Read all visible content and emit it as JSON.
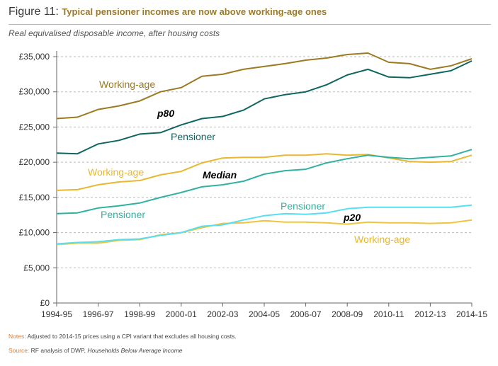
{
  "figure": {
    "number": "Figure 11:",
    "title": "Typical pensioner incomes are now above working-age ones",
    "subtitle": "Real equivalised disposable income, after housing costs"
  },
  "notes": {
    "label": "Notes:",
    "text": " Adjusted to 2014-15 prices using a CPI variant that excludes all housing costs."
  },
  "source": {
    "label": "Source:",
    "text": " RF analysis of DWP, ",
    "italic": "Households Below Average Income"
  },
  "colors": {
    "working_age_p80": "#9b7a20",
    "pensioner_p80": "#0f6660",
    "working_age_median": "#e8b830",
    "pensioner_median": "#2fb2a2",
    "working_age_p20": "#f0c43c",
    "pensioner_p20": "#55e0f0",
    "grid": "#bbbbbb",
    "axis": "#666666"
  },
  "chart_data": {
    "type": "line",
    "x": [
      "1994-95",
      "1995-96",
      "1996-97",
      "1997-98",
      "1998-99",
      "1999-00",
      "2000-01",
      "2001-02",
      "2002-03",
      "2003-04",
      "2004-05",
      "2005-06",
      "2006-07",
      "2007-08",
      "2008-09",
      "2009-10",
      "2010-11",
      "2011-12",
      "2012-13",
      "2013-14",
      "2014-15"
    ],
    "x_tick_labels": [
      "1994-95",
      "1996-97",
      "1998-99",
      "2000-01",
      "2002-03",
      "2004-05",
      "2006-07",
      "2008-09",
      "2010-11",
      "2012-13",
      "2014-15"
    ],
    "y_tick_labels": [
      "£0",
      "£5,000",
      "£10,000",
      "£15,000",
      "£20,000",
      "£25,000",
      "£30,000",
      "£35,000"
    ],
    "y_ticks": [
      0,
      5000,
      10000,
      15000,
      20000,
      25000,
      30000,
      35000
    ],
    "ylim": [
      0,
      36000
    ],
    "grid": "horizontal dashed",
    "series": [
      {
        "key": "working_age_p80",
        "values": [
          26200,
          26400,
          27500,
          28000,
          28700,
          30000,
          30600,
          32200,
          32500,
          33200,
          33600,
          34000,
          34500,
          34800,
          35300,
          35500,
          34200,
          34000,
          33200,
          33700,
          34700
        ]
      },
      {
        "key": "pensioner_p80",
        "values": [
          21300,
          21200,
          22600,
          23100,
          24000,
          24200,
          25300,
          26200,
          26500,
          27400,
          29000,
          29600,
          30000,
          31000,
          32400,
          33200,
          32100,
          32000,
          32500,
          33000,
          34400
        ]
      },
      {
        "key": "working_age_median",
        "values": [
          16000,
          16100,
          16800,
          17200,
          17400,
          18200,
          18700,
          19900,
          20600,
          20700,
          20700,
          21000,
          21000,
          21200,
          21000,
          21100,
          20600,
          20100,
          20000,
          20100,
          21000
        ]
      },
      {
        "key": "pensioner_median",
        "values": [
          12700,
          12800,
          13500,
          13800,
          14200,
          15000,
          15700,
          16500,
          16800,
          17300,
          18300,
          18800,
          19000,
          19900,
          20500,
          21000,
          20700,
          20500,
          20700,
          20900,
          21800
        ]
      },
      {
        "key": "working_age_p20",
        "values": [
          8300,
          8500,
          8500,
          8900,
          9000,
          9700,
          10000,
          10700,
          11300,
          11400,
          11700,
          11500,
          11500,
          11400,
          11200,
          11500,
          11400,
          11400,
          11300,
          11400,
          11800
        ]
      },
      {
        "key": "pensioner_p20",
        "values": [
          8400,
          8600,
          8700,
          9000,
          9100,
          9600,
          10000,
          10900,
          11100,
          11800,
          12400,
          12700,
          12600,
          12800,
          13400,
          13600,
          13600,
          13600,
          13600,
          13600,
          13900
        ]
      }
    ],
    "annotations": [
      {
        "key": "wa_p80_label",
        "text": "Working-age",
        "series": "working_age_p80"
      },
      {
        "key": "p80_label",
        "text": "p80",
        "style": "bold-italic"
      },
      {
        "key": "pen_p80_label",
        "text": "Pensioner",
        "series": "pensioner_p80"
      },
      {
        "key": "wa_median_label",
        "text": "Working-age",
        "series": "working_age_median"
      },
      {
        "key": "median_label",
        "text": "Median",
        "style": "bold-italic"
      },
      {
        "key": "pen_median_label",
        "text": "Pensioner",
        "series": "pensioner_median"
      },
      {
        "key": "pen_p20_label",
        "text": "Pensioner",
        "series": "pensioner_p20"
      },
      {
        "key": "p20_label",
        "text": "p20",
        "style": "bold-italic"
      },
      {
        "key": "wa_p20_label",
        "text": "Working-age",
        "series": "working_age_p20"
      }
    ]
  }
}
